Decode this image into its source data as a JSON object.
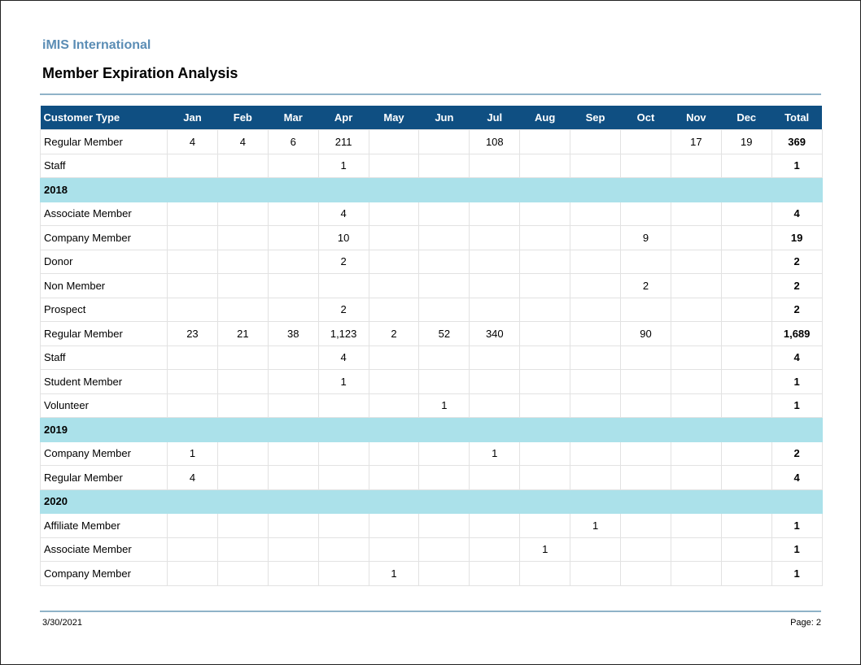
{
  "header": {
    "org": "iMIS International",
    "title": "Member Expiration Analysis"
  },
  "table": {
    "columns": [
      "Customer Type",
      "Jan",
      "Feb",
      "Mar",
      "Apr",
      "May",
      "Jun",
      "Jul",
      "Aug",
      "Sep",
      "Oct",
      "Nov",
      "Dec",
      "Total"
    ],
    "rows": [
      {
        "type": "data",
        "cells": [
          "Regular Member",
          "4",
          "4",
          "6",
          "211",
          "",
          "",
          "108",
          "",
          "",
          "",
          "17",
          "19",
          "369"
        ]
      },
      {
        "type": "data",
        "cells": [
          "Staff",
          "",
          "",
          "",
          "1",
          "",
          "",
          "",
          "",
          "",
          "",
          "",
          "",
          "1"
        ]
      },
      {
        "type": "year",
        "label": "2018"
      },
      {
        "type": "data",
        "cells": [
          "Associate Member",
          "",
          "",
          "",
          "4",
          "",
          "",
          "",
          "",
          "",
          "",
          "",
          "",
          "4"
        ]
      },
      {
        "type": "data",
        "cells": [
          "Company Member",
          "",
          "",
          "",
          "10",
          "",
          "",
          "",
          "",
          "",
          "9",
          "",
          "",
          "19"
        ]
      },
      {
        "type": "data",
        "cells": [
          "Donor",
          "",
          "",
          "",
          "2",
          "",
          "",
          "",
          "",
          "",
          "",
          "",
          "",
          "2"
        ]
      },
      {
        "type": "data",
        "cells": [
          "Non Member",
          "",
          "",
          "",
          "",
          "",
          "",
          "",
          "",
          "",
          "2",
          "",
          "",
          "2"
        ]
      },
      {
        "type": "data",
        "cells": [
          "Prospect",
          "",
          "",
          "",
          "2",
          "",
          "",
          "",
          "",
          "",
          "",
          "",
          "",
          "2"
        ]
      },
      {
        "type": "data",
        "cells": [
          "Regular Member",
          "23",
          "21",
          "38",
          "1,123",
          "2",
          "52",
          "340",
          "",
          "",
          "90",
          "",
          "",
          "1,689"
        ]
      },
      {
        "type": "data",
        "cells": [
          "Staff",
          "",
          "",
          "",
          "4",
          "",
          "",
          "",
          "",
          "",
          "",
          "",
          "",
          "4"
        ]
      },
      {
        "type": "data",
        "cells": [
          "Student Member",
          "",
          "",
          "",
          "1",
          "",
          "",
          "",
          "",
          "",
          "",
          "",
          "",
          "1"
        ]
      },
      {
        "type": "data",
        "cells": [
          "Volunteer",
          "",
          "",
          "",
          "",
          "",
          "1",
          "",
          "",
          "",
          "",
          "",
          "",
          "1"
        ]
      },
      {
        "type": "year",
        "label": "2019"
      },
      {
        "type": "data",
        "cells": [
          "Company Member",
          "1",
          "",
          "",
          "",
          "",
          "",
          "1",
          "",
          "",
          "",
          "",
          "",
          "2"
        ]
      },
      {
        "type": "data",
        "cells": [
          "Regular Member",
          "4",
          "",
          "",
          "",
          "",
          "",
          "",
          "",
          "",
          "",
          "",
          "",
          "4"
        ]
      },
      {
        "type": "year",
        "label": "2020"
      },
      {
        "type": "data",
        "cells": [
          "Affiliate Member",
          "",
          "",
          "",
          "",
          "",
          "",
          "",
          "",
          "1",
          "",
          "",
          "",
          "1"
        ]
      },
      {
        "type": "data",
        "cells": [
          "Associate Member",
          "",
          "",
          "",
          "",
          "",
          "",
          "",
          "1",
          "",
          "",
          "",
          "",
          "1"
        ]
      },
      {
        "type": "data",
        "cells": [
          "Company Member",
          "",
          "",
          "",
          "",
          "1",
          "",
          "",
          "",
          "",
          "",
          "",
          "",
          "1"
        ]
      }
    ]
  },
  "footer": {
    "date": "3/30/2021",
    "page": "Page: 2"
  }
}
